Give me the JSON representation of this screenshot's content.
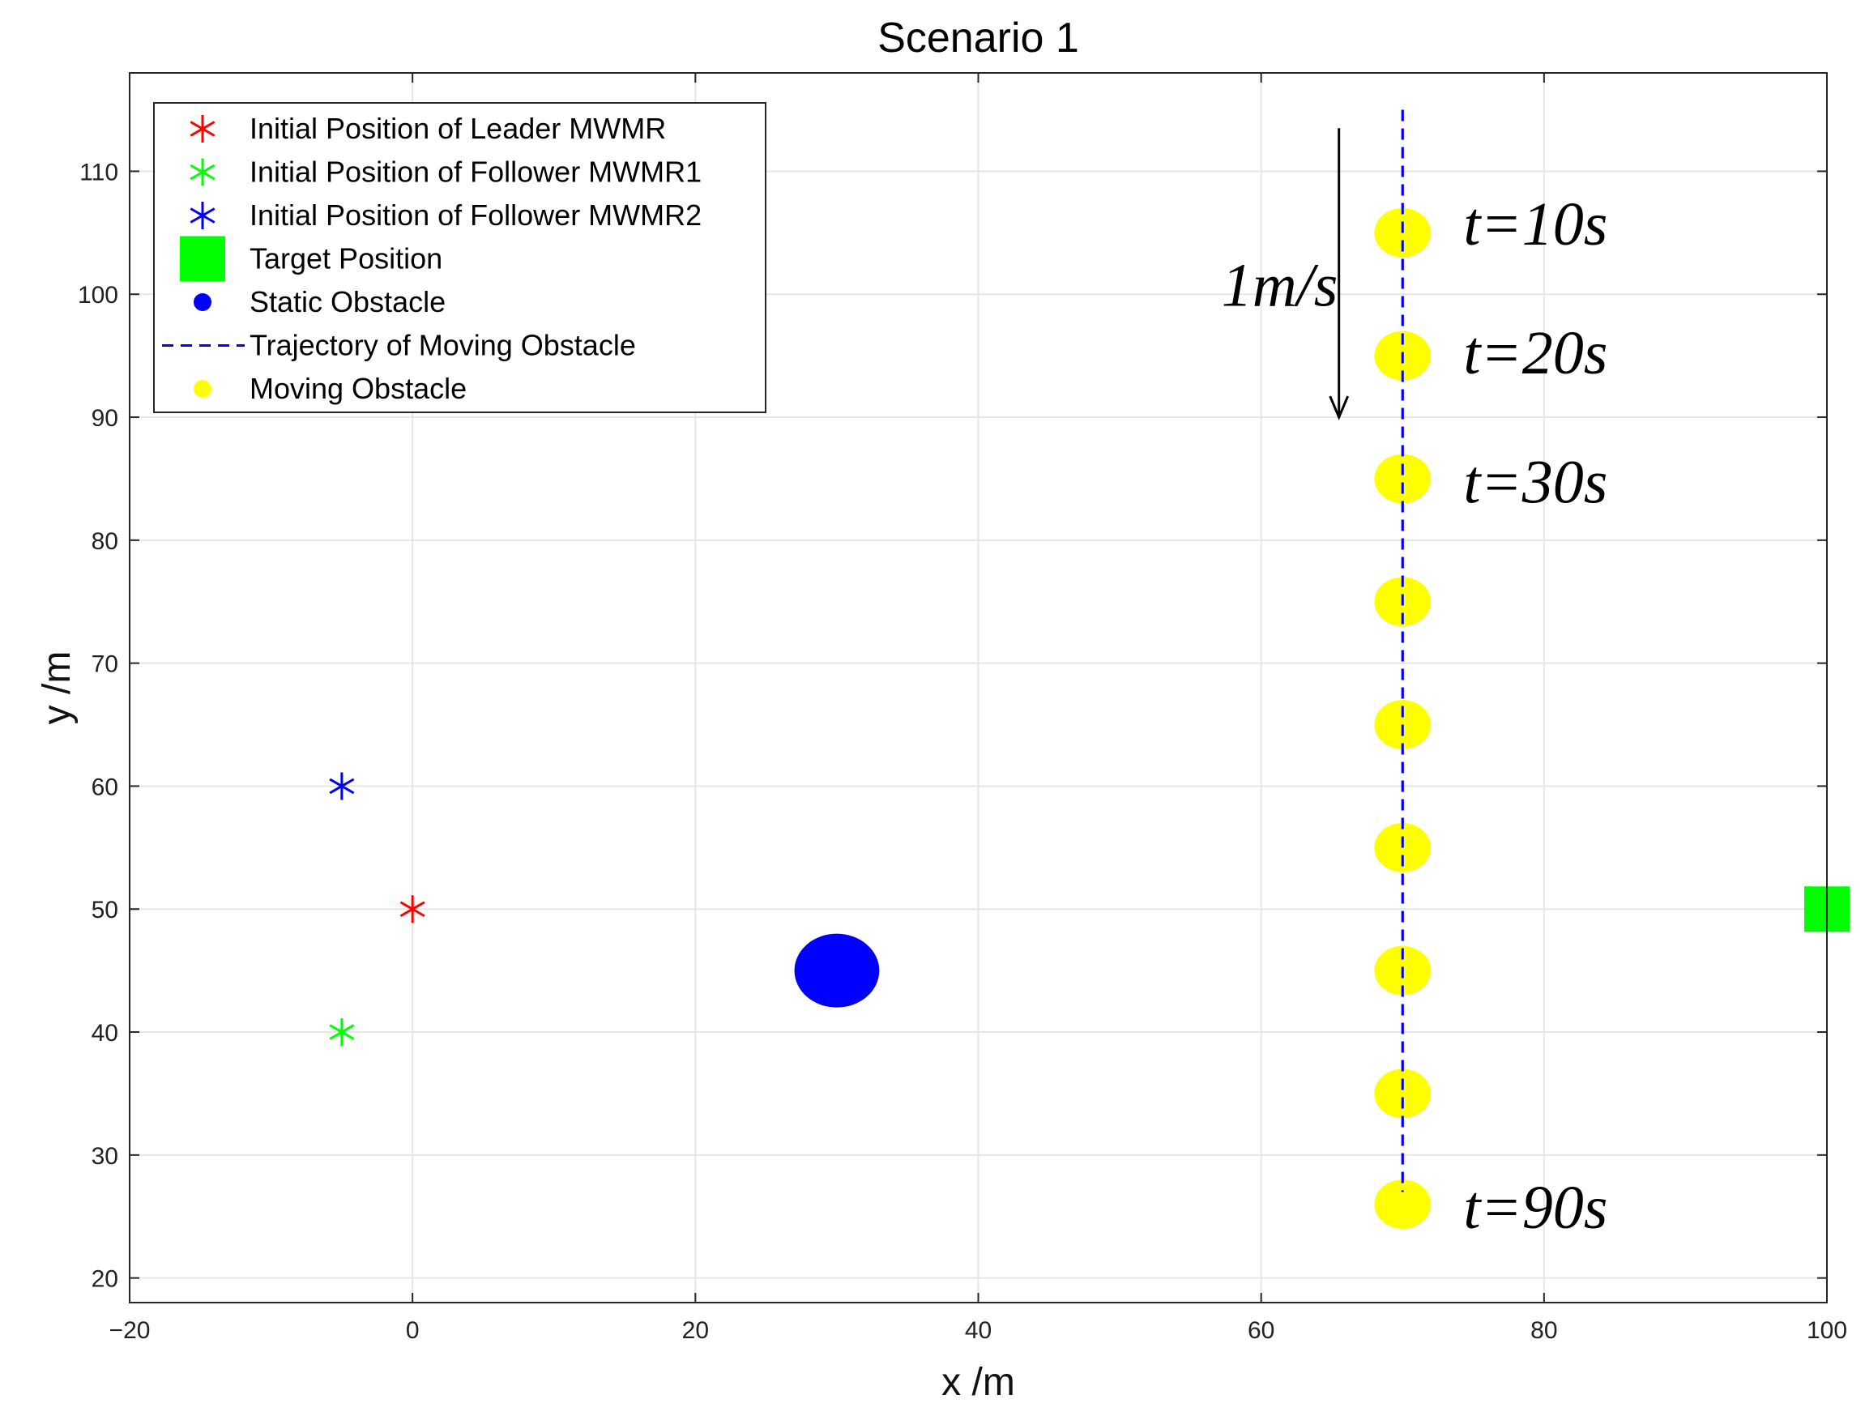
{
  "chart_data": {
    "type": "scatter",
    "title": "Scenario 1",
    "xlabel": "x /m",
    "ylabel": "y /m",
    "xlim": [
      -20,
      100
    ],
    "ylim": [
      18,
      118
    ],
    "xticks": [
      -20,
      0,
      20,
      40,
      60,
      80,
      100
    ],
    "xtick_labels": [
      "−20",
      "0",
      "20",
      "40",
      "60",
      "80",
      "100"
    ],
    "yticks": [
      20,
      30,
      40,
      50,
      60,
      70,
      80,
      90,
      100,
      110
    ],
    "yticks_labels": [
      "20",
      "30",
      "40",
      "50",
      "60",
      "70",
      "80",
      "90",
      "100",
      "110"
    ],
    "grid": true,
    "legend_position": "top-left",
    "series": [
      {
        "name": "Initial Position of Leader MWMR",
        "marker": "asterisk",
        "color": "#ff0000",
        "points": [
          [
            0,
            50
          ]
        ]
      },
      {
        "name": "Initial Position of Follower MWMR1",
        "marker": "asterisk",
        "color": "#00ff00",
        "points": [
          [
            -5,
            40
          ]
        ]
      },
      {
        "name": "Initial Position of Follower MWMR2",
        "marker": "asterisk",
        "color": "#0000ff",
        "points": [
          [
            -5,
            60
          ]
        ]
      },
      {
        "name": "Target Position",
        "marker": "square",
        "color": "#00ff00",
        "points": [
          [
            100,
            50
          ]
        ]
      },
      {
        "name": "Static Obstacle",
        "marker": "circle",
        "color": "#0000ff",
        "points": [
          [
            30,
            45
          ]
        ],
        "radius": 3
      },
      {
        "name": "Trajectory of Moving Obstacle",
        "marker": "dashed-line",
        "color": "#0000ff",
        "points": [
          [
            70,
            115
          ],
          [
            70,
            27
          ]
        ]
      },
      {
        "name": "Moving Obstacle",
        "marker": "circle",
        "color": "#ffff00",
        "points": [
          [
            70,
            105
          ],
          [
            70,
            95
          ],
          [
            70,
            85
          ],
          [
            70,
            75
          ],
          [
            70,
            65
          ],
          [
            70,
            55
          ],
          [
            70,
            45
          ],
          [
            70,
            35
          ],
          [
            70,
            26
          ]
        ],
        "radius": 2
      }
    ],
    "annotations": [
      {
        "text": "t=10s",
        "x": 74.3,
        "y": 105.5
      },
      {
        "text": "t=20s",
        "x": 74.3,
        "y": 95
      },
      {
        "text": "t=30s",
        "x": 74.3,
        "y": 84.5
      },
      {
        "text": "t=90s",
        "x": 74.3,
        "y": 25.5
      },
      {
        "text": "1m/s",
        "x": 57.2,
        "y": 100.5
      }
    ],
    "arrow": {
      "from": [
        65.5,
        113.5
      ],
      "to": [
        65.5,
        90
      ]
    }
  }
}
